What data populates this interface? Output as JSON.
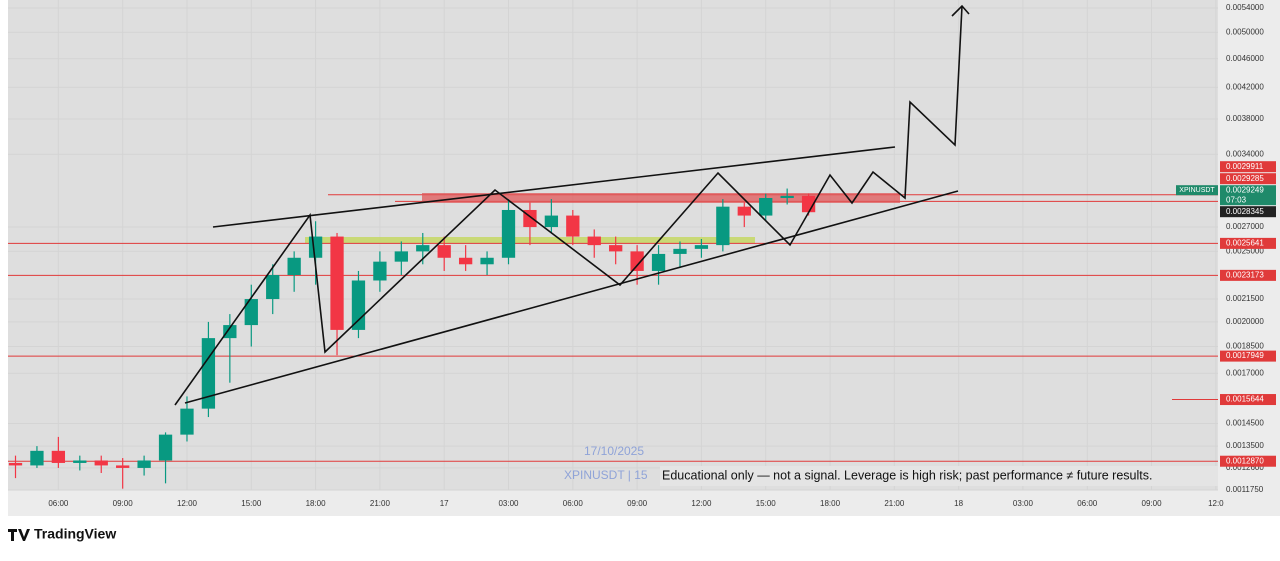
{
  "chart_data": {
    "type": "candlestick",
    "log_scale": true,
    "grid": true,
    "up_color": "#089981",
    "down_color": "#f23645",
    "x": [
      4,
      5,
      6,
      7,
      8,
      9,
      10,
      11,
      12,
      13,
      14,
      15,
      16,
      17,
      18,
      19,
      20,
      21,
      22,
      23,
      24,
      25,
      26,
      27,
      28,
      29,
      30,
      31,
      32,
      33,
      34,
      35,
      36,
      37,
      38,
      39,
      40,
      41
    ],
    "open": [
      0.00128,
      0.00127,
      0.00133,
      0.00128,
      0.00129,
      0.00127,
      0.00126,
      0.00129,
      0.0014,
      0.00152,
      0.0019,
      0.00198,
      0.00215,
      0.00232,
      0.00245,
      0.00262,
      0.00195,
      0.00228,
      0.00242,
      0.0025,
      0.00255,
      0.00245,
      0.0024,
      0.00245,
      0.00285,
      0.0027,
      0.0028,
      0.00262,
      0.00255,
      0.0025,
      0.00235,
      0.00248,
      0.00252,
      0.00255,
      0.00288,
      0.0028,
      0.00296,
      0.00298
    ],
    "high": [
      0.00131,
      0.00135,
      0.00139,
      0.00131,
      0.00131,
      0.0013,
      0.00131,
      0.00141,
      0.00158,
      0.002,
      0.00205,
      0.00225,
      0.0024,
      0.0025,
      0.00275,
      0.00265,
      0.00235,
      0.0025,
      0.00258,
      0.00265,
      0.00262,
      0.00255,
      0.0025,
      0.00295,
      0.00292,
      0.00295,
      0.00285,
      0.00268,
      0.00262,
      0.00255,
      0.00255,
      0.00258,
      0.0026,
      0.00295,
      0.00292,
      0.003,
      0.00305,
      0.003
    ],
    "low": [
      0.00122,
      0.00126,
      0.00126,
      0.00125,
      0.00124,
      0.00118,
      0.00123,
      0.0012,
      0.00137,
      0.00148,
      0.00165,
      0.00185,
      0.00205,
      0.0022,
      0.00225,
      0.0018,
      0.0019,
      0.0022,
      0.00232,
      0.0024,
      0.00235,
      0.00235,
      0.00232,
      0.0024,
      0.00255,
      0.00265,
      0.00255,
      0.00245,
      0.0024,
      0.00225,
      0.00225,
      0.00238,
      0.00245,
      0.0025,
      0.0027,
      0.00275,
      0.0029,
      0.0028
    ],
    "close": [
      0.00127,
      0.00133,
      0.00128,
      0.00129,
      0.00127,
      0.00126,
      0.00129,
      0.0014,
      0.00152,
      0.0019,
      0.00198,
      0.00215,
      0.00232,
      0.00245,
      0.00262,
      0.00195,
      0.00228,
      0.00242,
      0.0025,
      0.00255,
      0.00245,
      0.0024,
      0.00245,
      0.00285,
      0.0027,
      0.0028,
      0.00262,
      0.00255,
      0.0025,
      0.00235,
      0.00248,
      0.00252,
      0.00255,
      0.00288,
      0.0028,
      0.00296,
      0.00298,
      0.00283
    ],
    "xlim": [
      3.65,
      60.1
    ],
    "xticks": [
      {
        "value": 6,
        "label": "06:00"
      },
      {
        "value": 9,
        "label": "09:00"
      },
      {
        "value": 12,
        "label": "12:00"
      },
      {
        "value": 15,
        "label": "15:00"
      },
      {
        "value": 18,
        "label": "18:00"
      },
      {
        "value": 21,
        "label": "21:00"
      },
      {
        "value": 24,
        "label": "17"
      },
      {
        "value": 27,
        "label": "03:00"
      },
      {
        "value": 30,
        "label": "06:00"
      },
      {
        "value": 33,
        "label": "09:00"
      },
      {
        "value": 36,
        "label": "12:00"
      },
      {
        "value": 39,
        "label": "15:00"
      },
      {
        "value": 42,
        "label": "18:00"
      },
      {
        "value": 45,
        "label": "21:00"
      },
      {
        "value": 48,
        "label": "18"
      },
      {
        "value": 51,
        "label": "03:00"
      },
      {
        "value": 54,
        "label": "06:00"
      },
      {
        "value": 57,
        "label": "09:00"
      },
      {
        "value": 60,
        "label": "12:0"
      }
    ],
    "ylim": [
      0.001175,
      0.0054
    ],
    "yticks": [
      {
        "value": 0.0054,
        "label": "0.0054000"
      },
      {
        "value": 0.005,
        "label": "0.0050000"
      },
      {
        "value": 0.0046,
        "label": "0.0046000"
      },
      {
        "value": 0.0042,
        "label": "0.0042000"
      },
      {
        "value": 0.0038,
        "label": "0.0038000"
      },
      {
        "value": 0.0034,
        "label": "0.0034000"
      },
      {
        "value": 0.0027,
        "label": "0.0027000"
      },
      {
        "value": 0.0025,
        "label": "0.0025000"
      },
      {
        "value": 0.00215,
        "label": "0.0021500"
      },
      {
        "value": 0.002,
        "label": "0.0020000"
      },
      {
        "value": 0.00185,
        "label": "0.0018500"
      },
      {
        "value": 0.0017,
        "label": "0.0017000"
      },
      {
        "value": 0.00145,
        "label": "0.0014500"
      },
      {
        "value": 0.00135,
        "label": "0.0013500"
      },
      {
        "value": 0.00126,
        "label": "0.0012600"
      },
      {
        "value": 0.001175,
        "label": "0.0011750"
      }
    ],
    "price_lines": [
      {
        "value": 0.0029911,
        "color": "#e03a3a"
      },
      {
        "value": 0.0029285,
        "color": "#e03a3a"
      },
      {
        "value": 0.0028345,
        "color": "#222222"
      },
      {
        "value": 0.0025641,
        "color": "#e03a3a"
      },
      {
        "value": 0.0023173,
        "color": "#e03a3a"
      },
      {
        "value": 0.0017949,
        "color": "#e03a3a"
      },
      {
        "value": 0.0015644,
        "color": "#e03a3a"
      },
      {
        "value": 0.001287,
        "label": "0.0012870",
        "color": "#e03a3a"
      }
    ],
    "current_price": {
      "symbol": "XPINUSDT",
      "value": 0.0029249,
      "countdown": "07:03",
      "color": "#1f8a6a"
    },
    "date_text": "17/10/2025",
    "symbol_text": "XPINUSDT | 15",
    "disclaimer": "Educational only — not a signal. Leverage is high risk; past performance ≠ future results."
  },
  "brand": "TradingView"
}
